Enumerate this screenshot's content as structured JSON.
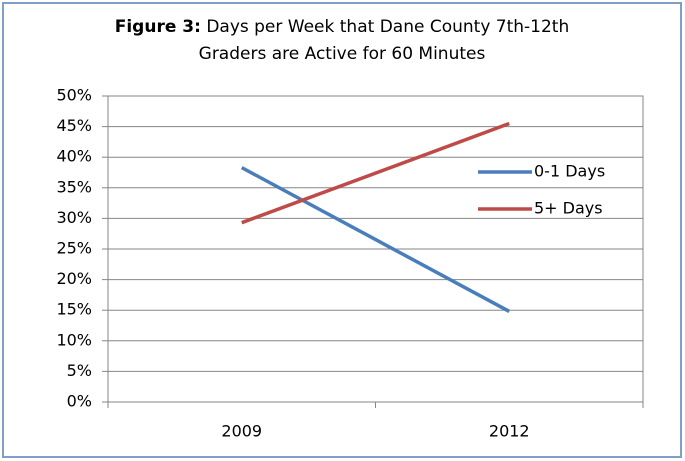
{
  "chart_data": {
    "type": "line",
    "title_label": "Figure 3:",
    "title": "Days per Week that Dane County 7th-12th Graders are Active for 60 Minutes",
    "categories": [
      "2009",
      "2012"
    ],
    "series": [
      {
        "name": "0-1 Days",
        "color": "#4a7ebb",
        "values": [
          38.3,
          14.8
        ]
      },
      {
        "name": "5+ Days",
        "color": "#be4b48",
        "values": [
          29.3,
          45.5
        ]
      }
    ],
    "ylim": [
      0,
      50
    ],
    "yticks": [
      {
        "value": 0,
        "label": "0%"
      },
      {
        "value": 5,
        "label": "5%"
      },
      {
        "value": 10,
        "label": "10%"
      },
      {
        "value": 15,
        "label": "15%"
      },
      {
        "value": 20,
        "label": "20%"
      },
      {
        "value": 25,
        "label": "25%"
      },
      {
        "value": 30,
        "label": "30%"
      },
      {
        "value": 35,
        "label": "35%"
      },
      {
        "value": 40,
        "label": "40%"
      },
      {
        "value": 45,
        "label": "45%"
      },
      {
        "value": 50,
        "label": "50%"
      }
    ],
    "grid": true,
    "legend": "right"
  }
}
